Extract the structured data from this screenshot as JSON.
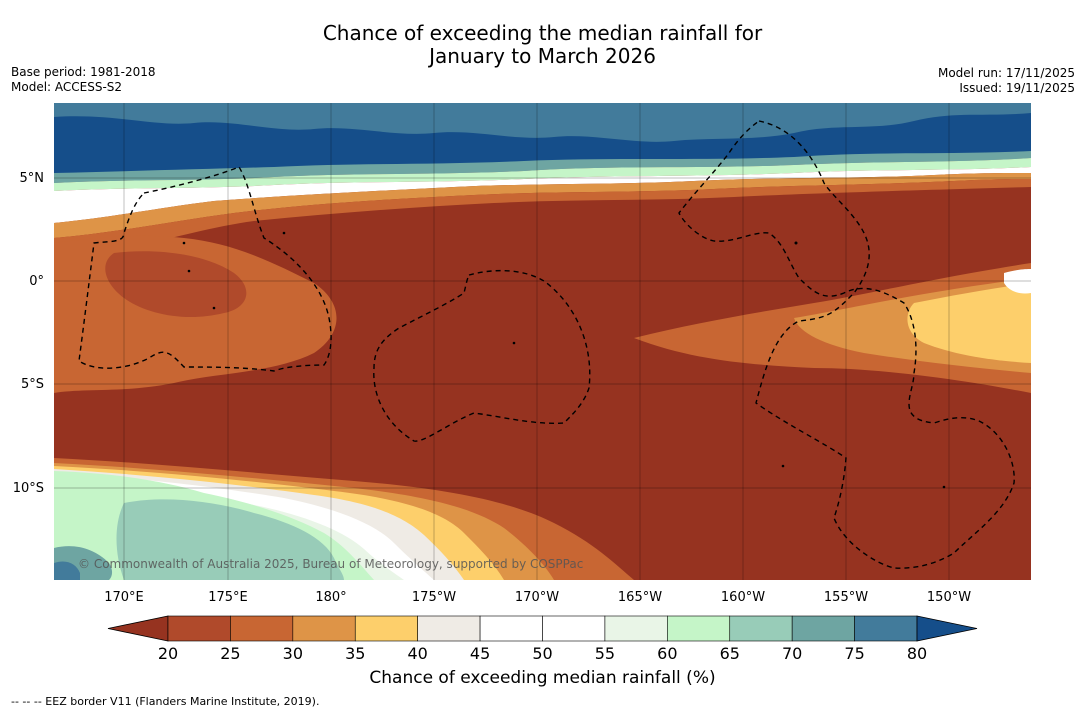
{
  "title": {
    "line1": "Chance of exceeding the median rainfall for",
    "line2": "January to March 2026"
  },
  "meta": {
    "base_period": "Base period: 1981-2018",
    "model": "Model: ACCESS-S2",
    "model_run": "Model run: 17/11/2025",
    "issued": "Issued: 19/11/2025"
  },
  "map": {
    "credit": "© Commonwealth of Australia 2025, Bureau of Meteorology, supported by COSPPac",
    "lat_labels": [
      "5°N",
      "0°",
      "5°S",
      "10°S"
    ],
    "lon_labels": [
      "170°E",
      "175°E",
      "180°",
      "175°W",
      "170°W",
      "165°W",
      "160°W",
      "155°W",
      "150°W"
    ]
  },
  "colorbar": {
    "title": "Chance of exceeding median rainfall (%)",
    "ticks": [
      "20",
      "25",
      "30",
      "35",
      "40",
      "45",
      "50",
      "55",
      "60",
      "65",
      "70",
      "75",
      "80"
    ],
    "colors": [
      "#963320",
      "#b04a2b",
      "#c86633",
      "#de9447",
      "#fdcf6b",
      "#efebe5",
      "#ffffff",
      "#ffffff",
      "#e9f5e7",
      "#c5f5c8",
      "#98ccb8",
      "#6ea5a2",
      "#427b9b",
      "#154e8a"
    ]
  },
  "legend_note": "--  --  -- EEZ border V11 (Flanders Marine Institute, 2019)."
}
